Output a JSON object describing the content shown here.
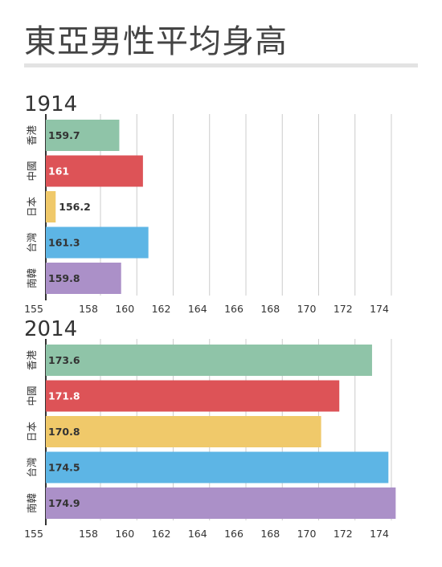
{
  "page_title": "東亞男性平均身高",
  "colors": {
    "香港": "#8fc4a8",
    "中國": "#dd5357",
    "日本": "#f0c96a",
    "台灣": "#5db5e5",
    "南韓": "#ab90c8",
    "grid": "#cccccc",
    "axis": "#333333"
  },
  "chart_data": [
    {
      "type": "bar",
      "orientation": "horizontal",
      "title": "1914",
      "categories": [
        "香港",
        "中國",
        "日本",
        "台灣",
        "南韓"
      ],
      "values": [
        159.7,
        161,
        156.2,
        161.3,
        159.8
      ],
      "data_labels": [
        "159.7",
        "161",
        "156.2",
        "161.3",
        "159.8"
      ],
      "xlim": [
        155,
        175
      ],
      "x_ticks": [
        "155",
        "158",
        "160",
        "162",
        "164",
        "166",
        "168",
        "170",
        "172",
        "174"
      ],
      "grid": true,
      "legend": "none"
    },
    {
      "type": "bar",
      "orientation": "horizontal",
      "title": "2014",
      "categories": [
        "香港",
        "中國",
        "日本",
        "台灣",
        "南韓"
      ],
      "values": [
        173.6,
        171.8,
        170.8,
        174.5,
        174.9
      ],
      "data_labels": [
        "173.6",
        "171.8",
        "170.8",
        "174.5",
        "174.9"
      ],
      "xlim": [
        155,
        175
      ],
      "x_ticks": [
        "155",
        "158",
        "160",
        "162",
        "164",
        "166",
        "168",
        "170",
        "172",
        "174"
      ],
      "grid": true,
      "legend": "none"
    }
  ]
}
